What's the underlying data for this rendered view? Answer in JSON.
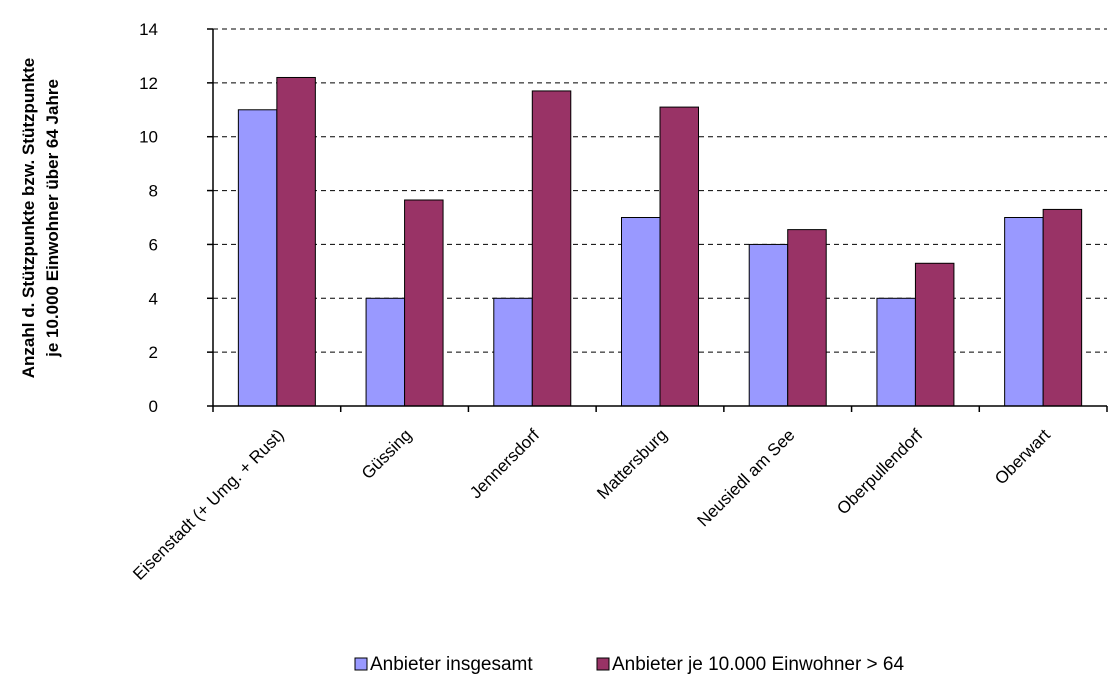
{
  "chart_data": {
    "type": "bar",
    "title": "",
    "xlabel": "",
    "ylabel": [
      "Anzahl d. Stützpunkte bzw. Stützpunkte",
      "je 10.000 Einwohner über 64 Jahre"
    ],
    "ylim": [
      0,
      14
    ],
    "yticks": [
      0,
      2,
      4,
      6,
      8,
      10,
      12,
      14
    ],
    "grid": "horizontal dashed",
    "legend_position": "bottom",
    "categories": [
      "Eisenstadt (+ Umg. + Rust)",
      "Güssing",
      "Jennersdorf",
      "Mattersburg",
      "Neusiedl am See",
      "Oberpullendorf",
      "Oberwart"
    ],
    "series": [
      {
        "name": "Anbieter insgesamt",
        "color": "#9999ff",
        "values": [
          11,
          4,
          4,
          7,
          6,
          4,
          7
        ]
      },
      {
        "name": "Anbieter je 10.000 Einwohner > 64",
        "color": "#993366",
        "values": [
          12.2,
          7.65,
          11.7,
          11.1,
          6.55,
          5.3,
          7.3
        ]
      }
    ]
  }
}
